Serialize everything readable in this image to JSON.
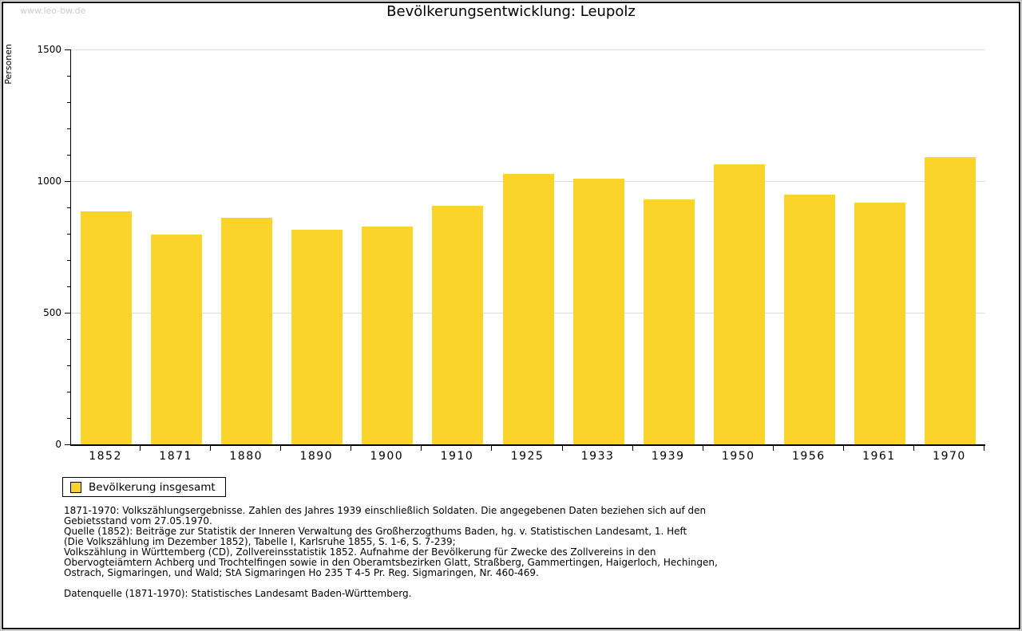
{
  "watermark": {
    "text": "www.leo-bw.de"
  },
  "colors": {
    "bar": "#FCD32B",
    "grid": "#DDDDDD",
    "axis": "#000000",
    "watermark": "#CCCCCC",
    "background": "#FFFFFF"
  },
  "chart_data": {
    "type": "bar",
    "title": "Bevölkerungsentwicklung: Leupolz",
    "ylabel": "Personen",
    "xlabel": "",
    "ylim": [
      0,
      1500
    ],
    "yticks_major": [
      0,
      500,
      1000,
      1500
    ],
    "ytick_minor_step": 100,
    "grid": true,
    "legend_position": "bottom-left",
    "categories": [
      "1852",
      "1871",
      "1880",
      "1890",
      "1900",
      "1910",
      "1925",
      "1933",
      "1939",
      "1950",
      "1956",
      "1961",
      "1970"
    ],
    "series": [
      {
        "name": "Bevölkerung insgesamt",
        "color": "#FCD32B",
        "values": [
          885,
          798,
          862,
          816,
          828,
          906,
          1028,
          1010,
          930,
          1065,
          948,
          918,
          1090
        ]
      }
    ]
  },
  "legend": {
    "label": "Bevölkerung insgesamt"
  },
  "footnotes": {
    "lines": [
      "1871-1970: Volkszählungsergebnisse. Zahlen des Jahres 1939 einschließlich Soldaten. Die angegebenen Daten beziehen sich auf den",
      "Gebietsstand vom 27.05.1970.",
      "Quelle (1852): Beiträge zur Statistik der Inneren Verwaltung des Großherzogthums Baden, hg. v. Statistischen Landesamt, 1. Heft",
      "(Die Volkszählung im Dezember 1852), Tabelle I, Karlsruhe 1855, S. 1-6, S. 7-239;",
      "Volkszählung in Württemberg (CD), Zollvereinsstatistik 1852. Aufnahme der Bevölkerung für Zwecke des Zollvereins in den",
      "Obervogteiämtern Achberg und Trochtelfingen sowie in den Oberamtsbezirken Glatt, Straßberg, Gammertingen, Haigerloch, Hechingen,",
      "Ostrach, Sigmaringen, und Wald; StA Sigmaringen Ho 235 T 4-5 Pr. Reg. Sigmaringen, Nr. 460-469."
    ],
    "datasource": "Datenquelle (1871-1970): Statistisches Landesamt Baden-Württemberg."
  }
}
